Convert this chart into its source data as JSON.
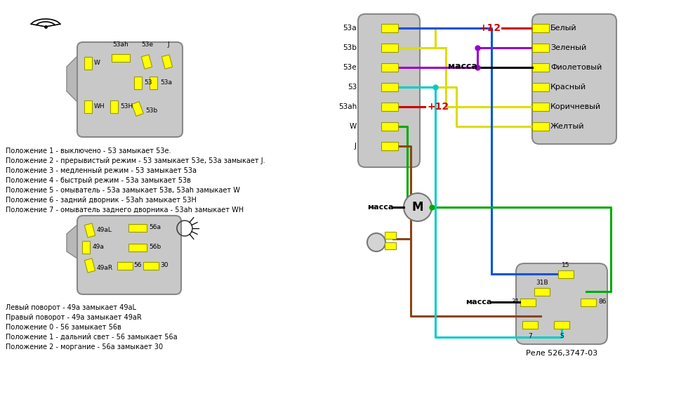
{
  "bg_color": "#ffffff",
  "connector_left_labels": [
    "53a",
    "53b",
    "53e",
    "53",
    "53ah",
    "W",
    "J"
  ],
  "connector_right_labels": [
    "Белый",
    "Зеленый",
    "Фиолетовый",
    "Красный",
    "Коричневый",
    "Желтый"
  ],
  "wiper_text_lines": [
    "Положение 1 - выключено - 53 замыкает 53е.",
    "Положение 2 - прерывистый режим - 53 замыкает 53е, 53а замыкает J.",
    "Положение 3 - медленный режим - 53 замыкает 53а",
    "Положение 4 - быстрый режим - 53а замыкает 53в",
    "Положение 5 - омыватель - 53а замыкает 53в, 53ah замыкает W",
    "Положение 6 - задний дворник - 53ah замыкает 53H",
    "Положение 7 - омыватель заднего дворника - 53ah замыкает WH"
  ],
  "turn_text_lines": [
    "Левый поворот - 49а замыкает 49aL",
    "Правый поворот - 49а замыкает 49aR",
    "Положение 0 - 56 замыкает 56в",
    "Положение 1 - дальний свет - 56 замыкает 56а",
    "Положение 2 - моргание - 56а замыкает 30"
  ],
  "rele_text": "Реле 526,3747-03"
}
